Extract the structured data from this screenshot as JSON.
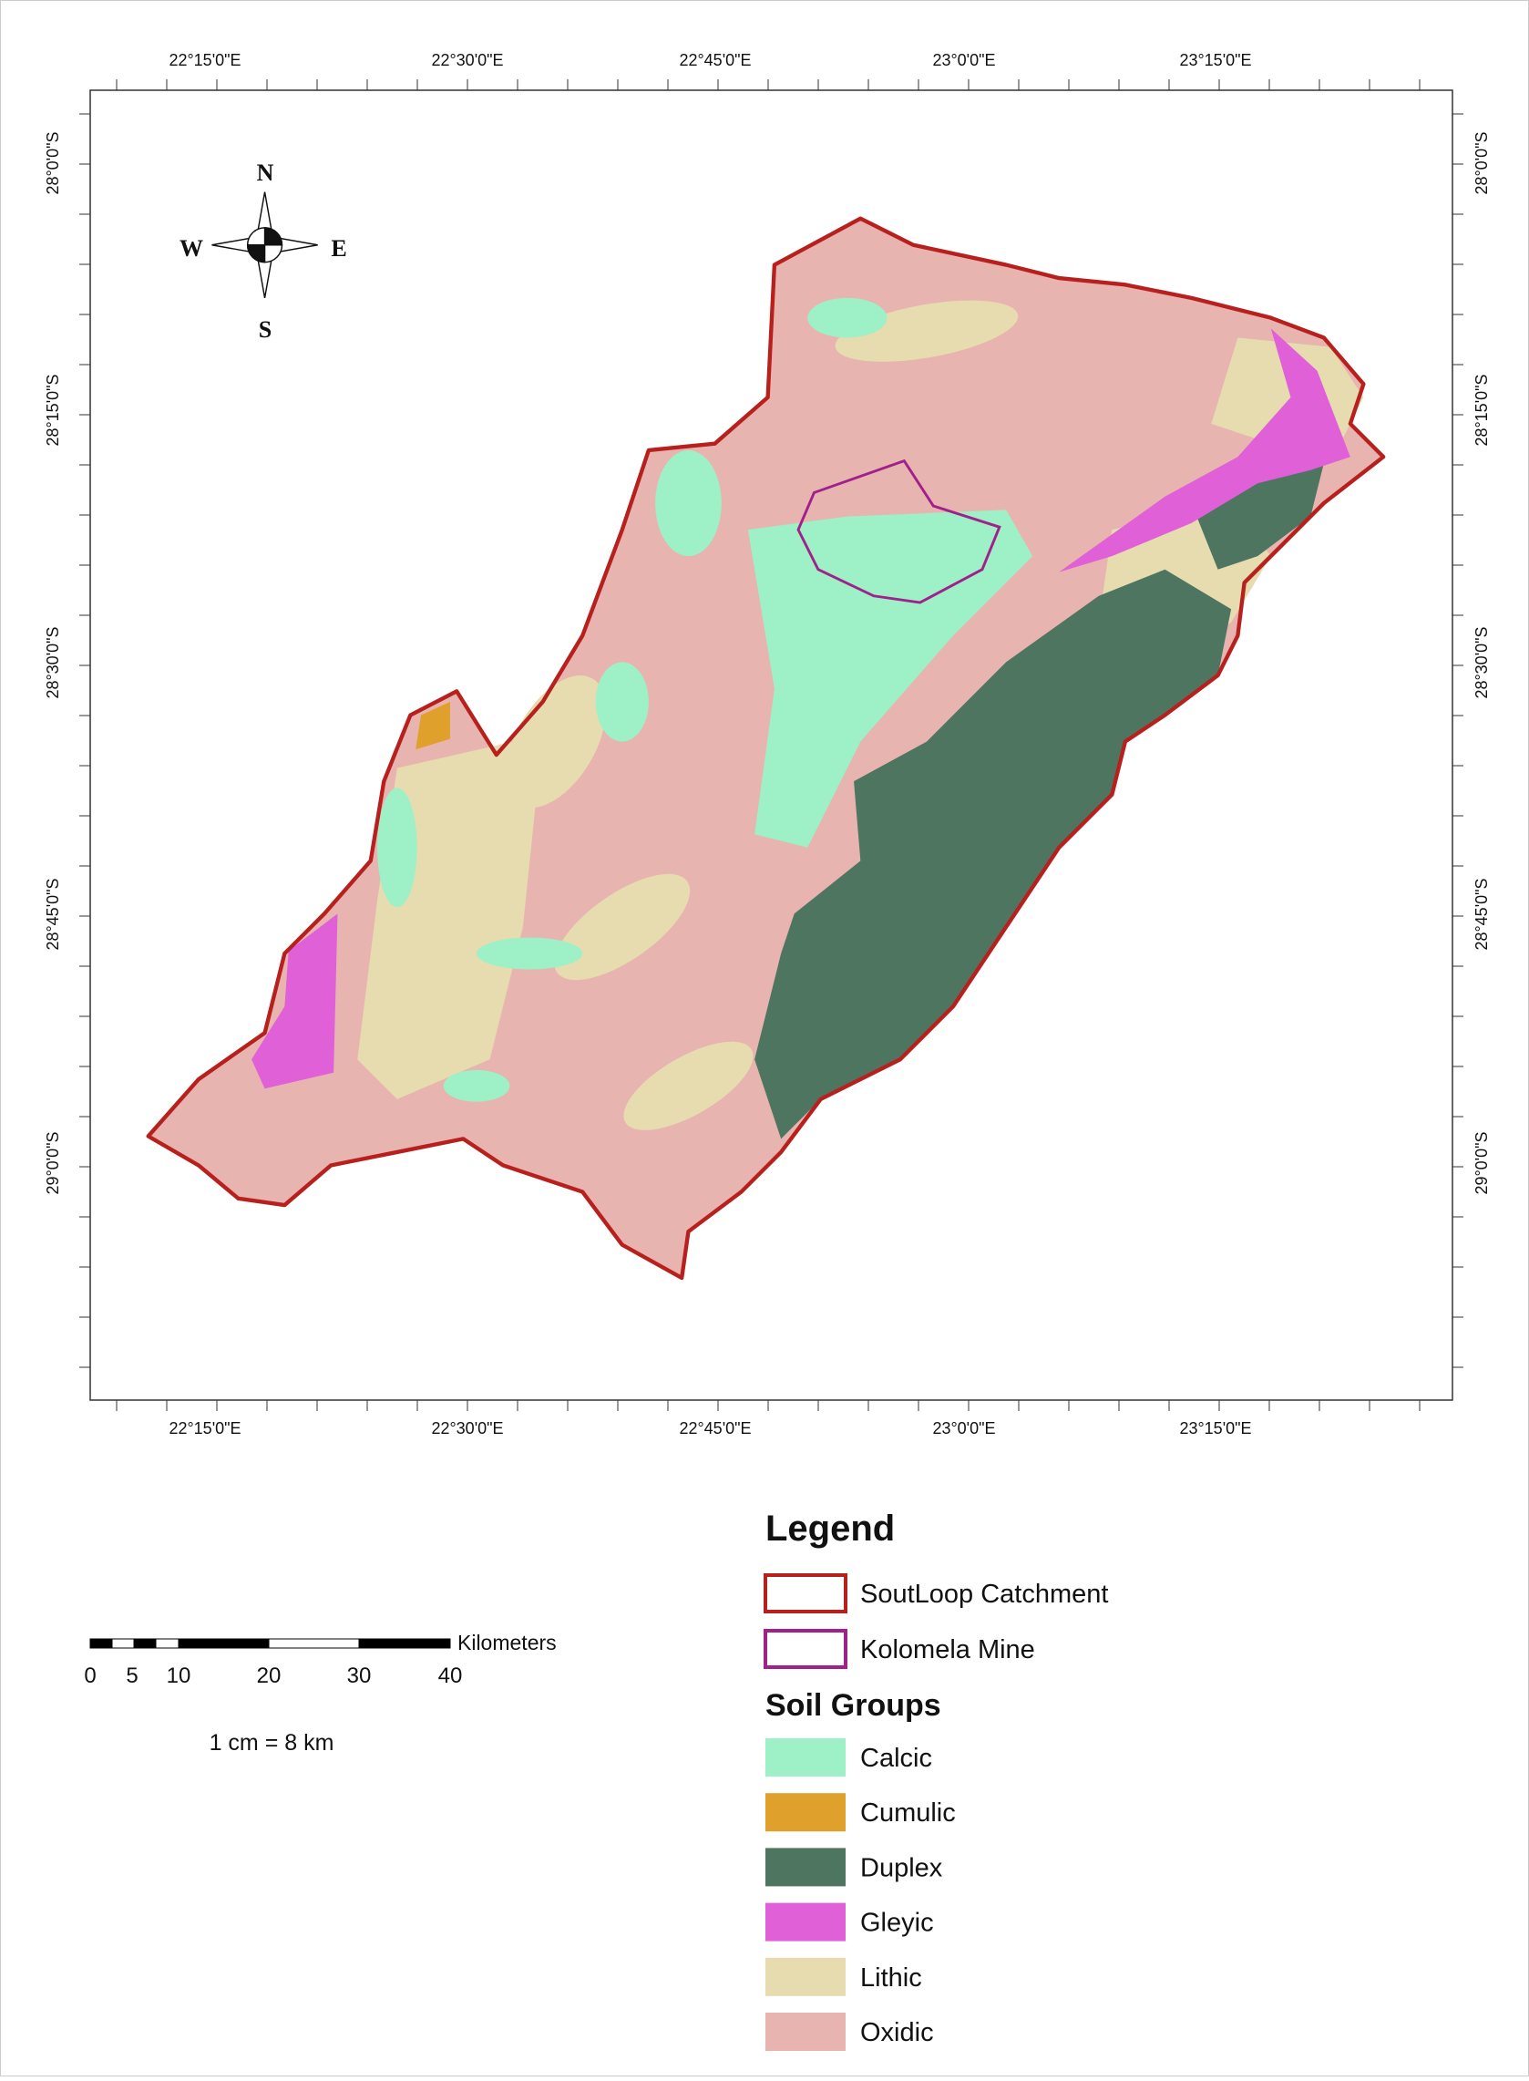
{
  "map": {
    "graticule": {
      "top": [
        "22°15'0\"E",
        "22°30'0\"E",
        "22°45'0\"E",
        "23°0'0\"E",
        "23°15'0\"E"
      ],
      "bottom": [
        "22°15'0\"E",
        "22°30'0\"E",
        "22°45'0\"E",
        "23°0'0\"E",
        "23°15'0\"E"
      ],
      "left": [
        "28°0'0\"S",
        "28°15'0\"S",
        "28°30'0\"S",
        "28°45'0\"S",
        "29°0'0\"S"
      ],
      "right": [
        "28°0'0\"S",
        "28°15'0\"S",
        "28°30'0\"S",
        "28°45'0\"S",
        "29°0'0\"S"
      ]
    },
    "compass": {
      "north": "N",
      "south": "S",
      "east": "E",
      "west": "W"
    },
    "scale_bar": {
      "labels": [
        "0",
        "5",
        "10",
        "20",
        "30",
        "40"
      ],
      "unit": "Kilometers",
      "ratio": "1 cm = 8 km"
    },
    "legend": {
      "title": "Legend",
      "boundaries": [
        {
          "label": "SoutLoop Catchment",
          "color": "#b8201e"
        },
        {
          "label": "Kolomela Mine",
          "color": "#a0208c"
        }
      ],
      "soil_title": "Soil Groups",
      "soil_groups": [
        {
          "label": "Calcic",
          "color": "#9ef0c6"
        },
        {
          "label": "Cumulic",
          "color": "#e0a02c"
        },
        {
          "label": "Duplex",
          "color": "#4e7560"
        },
        {
          "label": "Gleyic",
          "color": "#e060d8"
        },
        {
          "label": "Lithic",
          "color": "#e6dcb0"
        },
        {
          "label": "Oxidic",
          "color": "#e8b4b0"
        }
      ]
    }
  }
}
